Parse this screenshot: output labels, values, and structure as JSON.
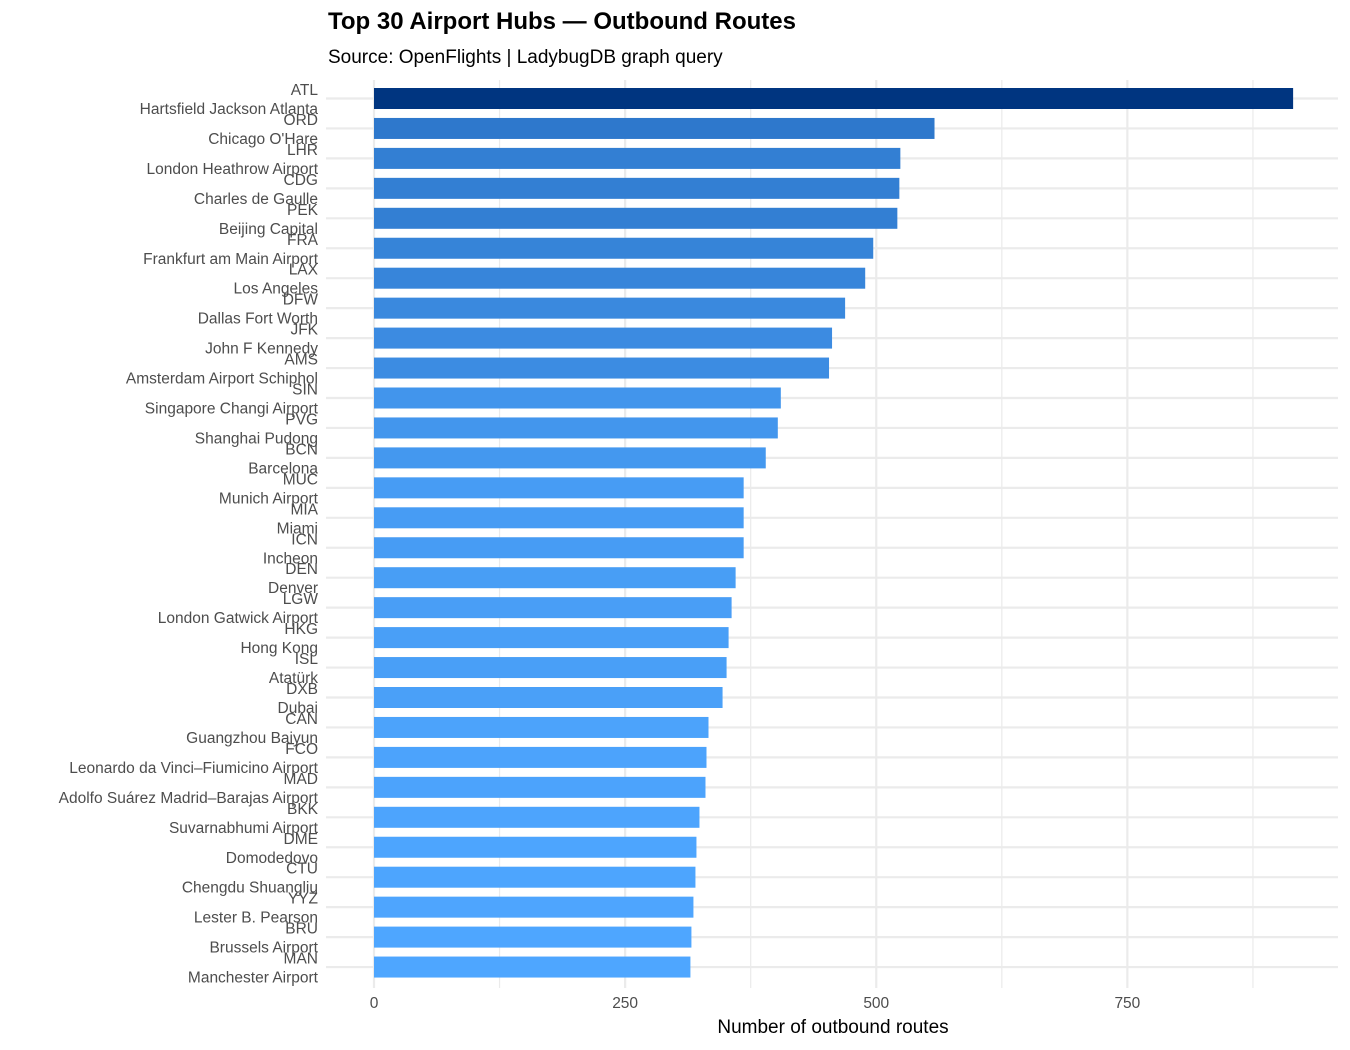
{
  "chart_data": {
    "type": "bar",
    "orientation": "horizontal",
    "title": "Top 30 Airport Hubs — Outbound Routes",
    "subtitle": "Source: OpenFlights  |  LadybugDB graph query",
    "xlabel": "Number of outbound routes",
    "ylabel": "",
    "xlim": [
      0,
      960
    ],
    "xticks": [
      0,
      250,
      500,
      750
    ],
    "grid": true,
    "legend": "none",
    "colors": {
      "low": "#4ea6ff",
      "high": "#003580"
    },
    "categories": [
      {
        "code": "ATL",
        "name": "Hartsfield Jackson Atlanta"
      },
      {
        "code": "ORD",
        "name": "Chicago O'Hare"
      },
      {
        "code": "LHR",
        "name": "London Heathrow Airport"
      },
      {
        "code": "CDG",
        "name": "Charles de Gaulle"
      },
      {
        "code": "PEK",
        "name": "Beijing Capital"
      },
      {
        "code": "FRA",
        "name": "Frankfurt am Main Airport"
      },
      {
        "code": "LAX",
        "name": "Los Angeles"
      },
      {
        "code": "DFW",
        "name": "Dallas Fort Worth"
      },
      {
        "code": "JFK",
        "name": "John F Kennedy"
      },
      {
        "code": "AMS",
        "name": "Amsterdam Airport Schiphol"
      },
      {
        "code": "SIN",
        "name": "Singapore Changi Airport"
      },
      {
        "code": "PVG",
        "name": "Shanghai Pudong"
      },
      {
        "code": "BCN",
        "name": "Barcelona"
      },
      {
        "code": "MUC",
        "name": "Munich Airport"
      },
      {
        "code": "MIA",
        "name": "Miami"
      },
      {
        "code": "ICN",
        "name": "Incheon"
      },
      {
        "code": "DEN",
        "name": "Denver"
      },
      {
        "code": "LGW",
        "name": "London Gatwick Airport"
      },
      {
        "code": "HKG",
        "name": "Hong Kong"
      },
      {
        "code": "ISL",
        "name": "Atatürk"
      },
      {
        "code": "DXB",
        "name": "Dubai"
      },
      {
        "code": "CAN",
        "name": "Guangzhou Baiyun"
      },
      {
        "code": "FCO",
        "name": "Leonardo da Vinci–Fiumicino Airport"
      },
      {
        "code": "MAD",
        "name": "Adolfo Suárez Madrid–Barajas Airport"
      },
      {
        "code": "BKK",
        "name": "Suvarnabhumi Airport"
      },
      {
        "code": "DME",
        "name": "Domodedovo"
      },
      {
        "code": "CTU",
        "name": "Chengdu Shuangliu"
      },
      {
        "code": "YYZ",
        "name": "Lester B. Pearson"
      },
      {
        "code": "BRU",
        "name": "Brussels Airport"
      },
      {
        "code": "MAN",
        "name": "Manchester Airport"
      }
    ],
    "values": [
      915,
      558,
      524,
      523,
      521,
      497,
      489,
      469,
      456,
      453,
      405,
      402,
      390,
      368,
      368,
      368,
      360,
      356,
      353,
      351,
      347,
      333,
      331,
      330,
      324,
      321,
      320,
      318,
      316,
      315
    ]
  }
}
